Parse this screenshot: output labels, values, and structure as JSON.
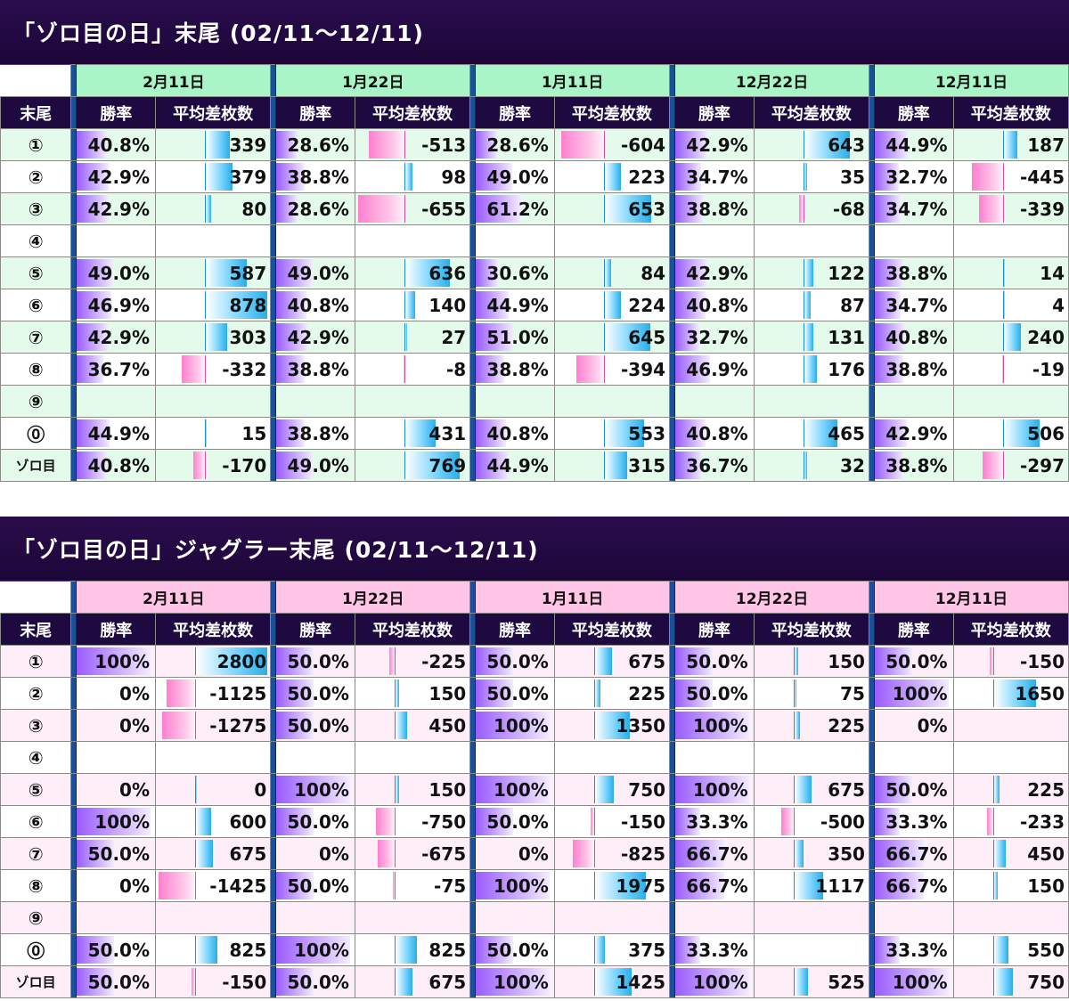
{
  "colors": {
    "banner": "#1c0637",
    "header_bg": "#1e0a40",
    "table1_date_bg": "#aaf5c8",
    "table1_alt_bg": "#e4fbec",
    "table2_date_bg": "#ffc4e6",
    "table2_alt_bg": "#fdeef7",
    "winrate_bar": "#9a5cff",
    "positive_bar": "#29aee8",
    "negative_bar": "#ff7fcf"
  },
  "chart_data": [
    {
      "type": "table",
      "title": "「ゾロ目の日」末尾 (02/11～12/11)",
      "corner_label": "末尾",
      "col_winrate": "勝率",
      "col_avg": "平均差枚数",
      "dates": [
        "2月11日",
        "1月22日",
        "1月11日",
        "12月22日",
        "12月11日"
      ],
      "rows": [
        {
          "label": "①",
          "cells": [
            [
              "40.8%",
              40.8,
              "339",
              339
            ],
            [
              "28.6%",
              28.6,
              "-513",
              -513
            ],
            [
              "28.6%",
              28.6,
              "-604",
              -604
            ],
            [
              "42.9%",
              42.9,
              "643",
              643
            ],
            [
              "44.9%",
              44.9,
              "187",
              187
            ]
          ]
        },
        {
          "label": "②",
          "cells": [
            [
              "42.9%",
              42.9,
              "379",
              379
            ],
            [
              "38.8%",
              38.8,
              "98",
              98
            ],
            [
              "49.0%",
              49.0,
              "223",
              223
            ],
            [
              "34.7%",
              34.7,
              "35",
              35
            ],
            [
              "32.7%",
              32.7,
              "-445",
              -445
            ]
          ]
        },
        {
          "label": "③",
          "cells": [
            [
              "42.9%",
              42.9,
              "80",
              80
            ],
            [
              "28.6%",
              28.6,
              "-655",
              -655
            ],
            [
              "61.2%",
              61.2,
              "653",
              653
            ],
            [
              "38.8%",
              38.8,
              "-68",
              -68
            ],
            [
              "34.7%",
              34.7,
              "-339",
              -339
            ]
          ]
        },
        {
          "label": "④",
          "cells": [
            [
              "",
              null,
              "",
              null
            ],
            [
              "",
              null,
              "",
              null
            ],
            [
              "",
              null,
              "",
              null
            ],
            [
              "",
              null,
              "",
              null
            ],
            [
              "",
              null,
              "",
              null
            ]
          ]
        },
        {
          "label": "⑤",
          "cells": [
            [
              "49.0%",
              49.0,
              "587",
              587
            ],
            [
              "49.0%",
              49.0,
              "636",
              636
            ],
            [
              "30.6%",
              30.6,
              "84",
              84
            ],
            [
              "42.9%",
              42.9,
              "122",
              122
            ],
            [
              "38.8%",
              38.8,
              "14",
              14
            ]
          ]
        },
        {
          "label": "⑥",
          "cells": [
            [
              "46.9%",
              46.9,
              "878",
              878
            ],
            [
              "40.8%",
              40.8,
              "140",
              140
            ],
            [
              "44.9%",
              44.9,
              "224",
              224
            ],
            [
              "40.8%",
              40.8,
              "87",
              87
            ],
            [
              "34.7%",
              34.7,
              "4",
              4
            ]
          ]
        },
        {
          "label": "⑦",
          "cells": [
            [
              "42.9%",
              42.9,
              "303",
              303
            ],
            [
              "42.9%",
              42.9,
              "27",
              27
            ],
            [
              "51.0%",
              51.0,
              "645",
              645
            ],
            [
              "32.7%",
              32.7,
              "131",
              131
            ],
            [
              "40.8%",
              40.8,
              "240",
              240
            ]
          ]
        },
        {
          "label": "⑧",
          "cells": [
            [
              "36.7%",
              36.7,
              "-332",
              -332
            ],
            [
              "38.8%",
              38.8,
              "-8",
              -8
            ],
            [
              "38.8%",
              38.8,
              "-394",
              -394
            ],
            [
              "46.9%",
              46.9,
              "176",
              176
            ],
            [
              "38.8%",
              38.8,
              "-19",
              -19
            ]
          ]
        },
        {
          "label": "⑨",
          "cells": [
            [
              "",
              null,
              "",
              null
            ],
            [
              "",
              null,
              "",
              null
            ],
            [
              "",
              null,
              "",
              null
            ],
            [
              "",
              null,
              "",
              null
            ],
            [
              "",
              null,
              "",
              null
            ]
          ]
        },
        {
          "label": "⓪",
          "cells": [
            [
              "44.9%",
              44.9,
              "15",
              15
            ],
            [
              "38.8%",
              38.8,
              "431",
              431
            ],
            [
              "40.8%",
              40.8,
              "553",
              553
            ],
            [
              "40.8%",
              40.8,
              "465",
              465
            ],
            [
              "42.9%",
              42.9,
              "506",
              506
            ]
          ]
        },
        {
          "label": "ゾロ目",
          "cells": [
            [
              "40.8%",
              40.8,
              "-170",
              -170
            ],
            [
              "49.0%",
              49.0,
              "769",
              769
            ],
            [
              "44.9%",
              44.9,
              "315",
              315
            ],
            [
              "36.7%",
              36.7,
              "32",
              32
            ],
            [
              "38.8%",
              38.8,
              "-297",
              -297
            ]
          ]
        }
      ]
    },
    {
      "type": "table",
      "title": "「ゾロ目の日」ジャグラー末尾 (02/11～12/11)",
      "corner_label": "末尾",
      "col_winrate": "勝率",
      "col_avg": "平均差枚数",
      "dates": [
        "2月11日",
        "1月22日",
        "1月11日",
        "12月22日",
        "12月11日"
      ],
      "rows": [
        {
          "label": "①",
          "cells": [
            [
              "100%",
              100,
              "2800",
              2800
            ],
            [
              "50.0%",
              50,
              "-225",
              -225
            ],
            [
              "50.0%",
              50,
              "675",
              675
            ],
            [
              "50.0%",
              50,
              "150",
              150
            ],
            [
              "50.0%",
              50,
              "-150",
              -150
            ]
          ]
        },
        {
          "label": "②",
          "cells": [
            [
              "0%",
              0,
              "-1125",
              -1125
            ],
            [
              "50.0%",
              50,
              "150",
              150
            ],
            [
              "50.0%",
              50,
              "225",
              225
            ],
            [
              "50.0%",
              50,
              "75",
              75
            ],
            [
              "100%",
              100,
              "1650",
              1650
            ]
          ]
        },
        {
          "label": "③",
          "cells": [
            [
              "0%",
              0,
              "-1275",
              -1275
            ],
            [
              "50.0%",
              50,
              "450",
              450
            ],
            [
              "100%",
              100,
              "1350",
              1350
            ],
            [
              "100%",
              100,
              "225",
              225
            ],
            [
              "0%",
              0,
              "",
              null
            ]
          ]
        },
        {
          "label": "④",
          "cells": [
            [
              "",
              null,
              "",
              null
            ],
            [
              "",
              null,
              "",
              null
            ],
            [
              "",
              null,
              "",
              null
            ],
            [
              "",
              null,
              "",
              null
            ],
            [
              "",
              null,
              "",
              null
            ]
          ]
        },
        {
          "label": "⑤",
          "cells": [
            [
              "0%",
              0,
              "0",
              0
            ],
            [
              "100%",
              100,
              "150",
              150
            ],
            [
              "100%",
              100,
              "750",
              750
            ],
            [
              "100%",
              100,
              "675",
              675
            ],
            [
              "50.0%",
              50,
              "225",
              225
            ]
          ]
        },
        {
          "label": "⑥",
          "cells": [
            [
              "100%",
              100,
              "600",
              600
            ],
            [
              "50.0%",
              50,
              "-750",
              -750
            ],
            [
              "50.0%",
              50,
              "-150",
              -150
            ],
            [
              "33.3%",
              33.3,
              "-500",
              -500
            ],
            [
              "33.3%",
              33.3,
              "-233",
              -233
            ]
          ]
        },
        {
          "label": "⑦",
          "cells": [
            [
              "50.0%",
              50,
              "675",
              675
            ],
            [
              "0%",
              0,
              "-675",
              -675
            ],
            [
              "0%",
              0,
              "-825",
              -825
            ],
            [
              "66.7%",
              66.7,
              "350",
              350
            ],
            [
              "66.7%",
              66.7,
              "450",
              450
            ]
          ]
        },
        {
          "label": "⑧",
          "cells": [
            [
              "0%",
              0,
              "-1425",
              -1425
            ],
            [
              "50.0%",
              50,
              "-75",
              -75
            ],
            [
              "100%",
              100,
              "1975",
              1975
            ],
            [
              "66.7%",
              66.7,
              "1117",
              1117
            ],
            [
              "66.7%",
              66.7,
              "150",
              150
            ]
          ]
        },
        {
          "label": "⑨",
          "cells": [
            [
              "",
              null,
              "",
              null
            ],
            [
              "",
              null,
              "",
              null
            ],
            [
              "",
              null,
              "",
              null
            ],
            [
              "",
              null,
              "",
              null
            ],
            [
              "",
              null,
              "",
              null
            ]
          ]
        },
        {
          "label": "⓪",
          "cells": [
            [
              "50.0%",
              50,
              "825",
              825
            ],
            [
              "100%",
              100,
              "825",
              825
            ],
            [
              "50.0%",
              50,
              "375",
              375
            ],
            [
              "33.3%",
              33.3,
              "",
              null
            ],
            [
              "33.3%",
              33.3,
              "550",
              550
            ]
          ]
        },
        {
          "label": "ゾロ目",
          "cells": [
            [
              "50.0%",
              50,
              "-150",
              -150
            ],
            [
              "50.0%",
              50,
              "675",
              675
            ],
            [
              "100%",
              100,
              "1425",
              1425
            ],
            [
              "100%",
              100,
              "525",
              525
            ],
            [
              "100%",
              100,
              "750",
              750
            ]
          ]
        }
      ]
    }
  ]
}
